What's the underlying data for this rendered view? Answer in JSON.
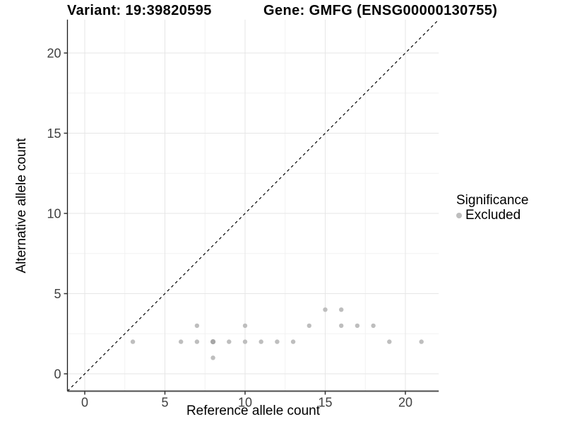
{
  "chart_data": {
    "type": "scatter",
    "titles": [
      "Variant: 19:39820595",
      "Gene: GMFG (ENSG00000130755)"
    ],
    "xlabel": "Reference allele count",
    "ylabel": "Alternative allele count",
    "xlim": [
      -1.08,
      22.08
    ],
    "ylim": [
      -1.08,
      22.08
    ],
    "x_ticks": [
      0,
      5,
      10,
      15,
      20
    ],
    "y_ticks": [
      0,
      5,
      10,
      15,
      20
    ],
    "x_minor_gridlines": [
      2.5,
      7.5,
      12.5,
      17.5
    ],
    "y_minor_gridlines": [
      2.5,
      7.5,
      12.5,
      17.5
    ],
    "grid": true,
    "equal_aspect": true,
    "identity_line": {
      "slope": 1,
      "intercept": 0,
      "style": "dashed",
      "color": "#000000"
    },
    "series": [
      {
        "name": "Excluded",
        "color": "#bebebe",
        "points": [
          [
            3,
            2
          ],
          [
            6,
            2
          ],
          [
            7,
            2
          ],
          [
            7,
            3
          ],
          [
            8,
            1
          ],
          [
            8,
            2
          ],
          [
            9,
            2
          ],
          [
            10,
            2
          ],
          [
            10,
            3
          ],
          [
            11,
            2
          ],
          [
            12,
            2
          ],
          [
            13,
            2
          ],
          [
            14,
            3
          ],
          [
            15,
            4
          ],
          [
            16,
            3
          ],
          [
            16,
            4
          ],
          [
            17,
            3
          ],
          [
            18,
            3
          ],
          [
            19,
            2
          ],
          [
            21,
            2
          ]
        ]
      }
    ],
    "overplotted_darker_points": [
      [
        8,
        2
      ]
    ],
    "legend": {
      "title": "Significance",
      "position": "right",
      "items": [
        {
          "label": "Excluded",
          "color": "#bebebe"
        }
      ]
    },
    "colors": {
      "point": "#bebebe",
      "point_dark": "#a6a6a6",
      "grid_major": "#e6e6e6",
      "grid_minor": "#f2f2f2",
      "axis_line_left": "#1a1a1a",
      "axis_line_bottom": "#4d4d4d",
      "tick_mark": "#333333",
      "tick_label": "#404040",
      "background": "#ffffff"
    }
  }
}
